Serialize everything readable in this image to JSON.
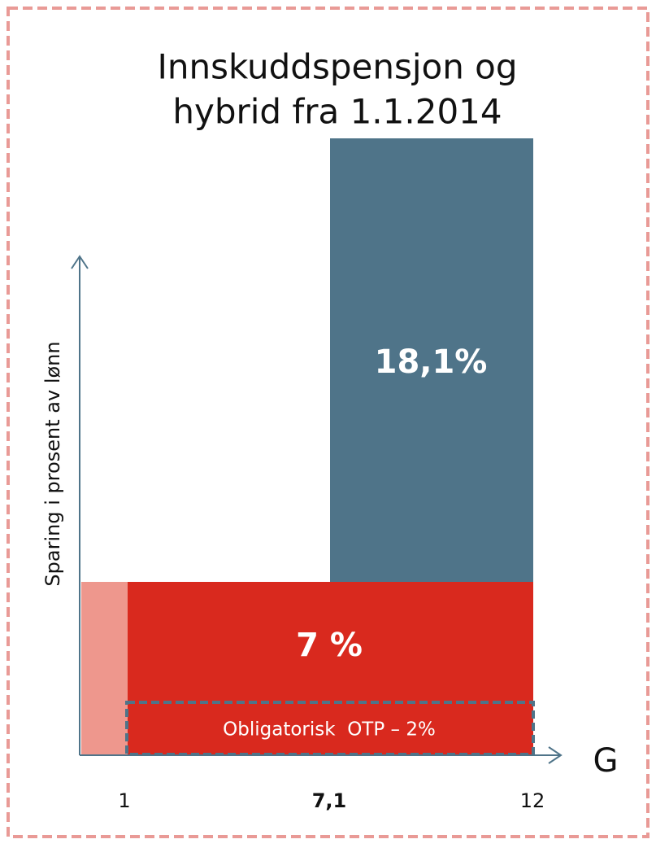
{
  "title": {
    "line1": "Innskuddspensjon og",
    "line2": "hybrid fra 1.1.2014"
  },
  "y_axis_label": "Sparing i prosent av lønn",
  "x_axis_label": "G",
  "x_labels": [
    "1",
    "7,1",
    "12"
  ],
  "blocks": {
    "upper": "18,1%",
    "lower": "7 %",
    "mandatory": "Obligatorisk  OTP – 2%"
  }
}
